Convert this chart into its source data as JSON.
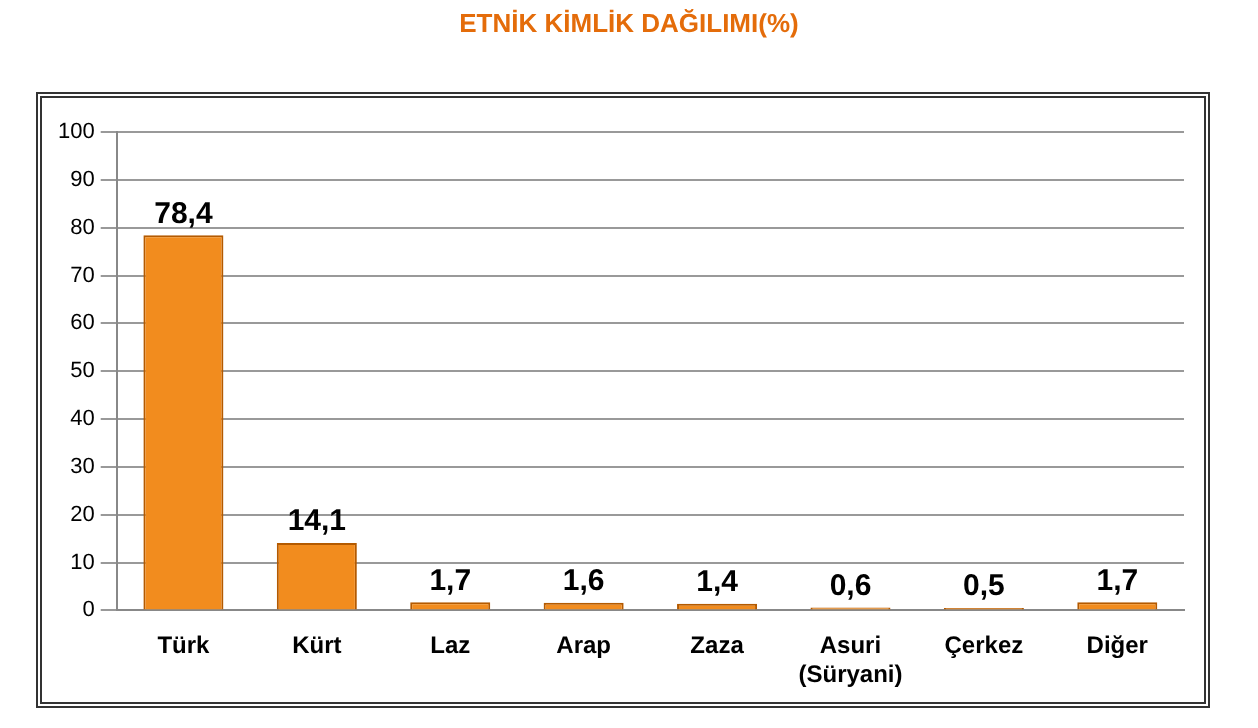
{
  "chart_data": {
    "type": "bar",
    "title": "ETNİK KİMLİK DAĞILIMI(%)",
    "categories": [
      "Türk",
      "Kürt",
      "Laz",
      "Arap",
      "Zaza",
      "Asuri (Süryani)",
      "Çerkez",
      "Diğer"
    ],
    "values": [
      78.4,
      14.1,
      1.7,
      1.6,
      1.4,
      0.6,
      0.5,
      1.7
    ],
    "value_labels": [
      "78,4",
      "14,1",
      "1,7",
      "1,6",
      "1,4",
      "0,6",
      "0,5",
      "1,7"
    ],
    "color": "#f28c1e",
    "ylim": [
      0,
      100
    ],
    "yticks": [
      0,
      10,
      20,
      30,
      40,
      50,
      60,
      70,
      80,
      90,
      100
    ],
    "grid": "y"
  }
}
